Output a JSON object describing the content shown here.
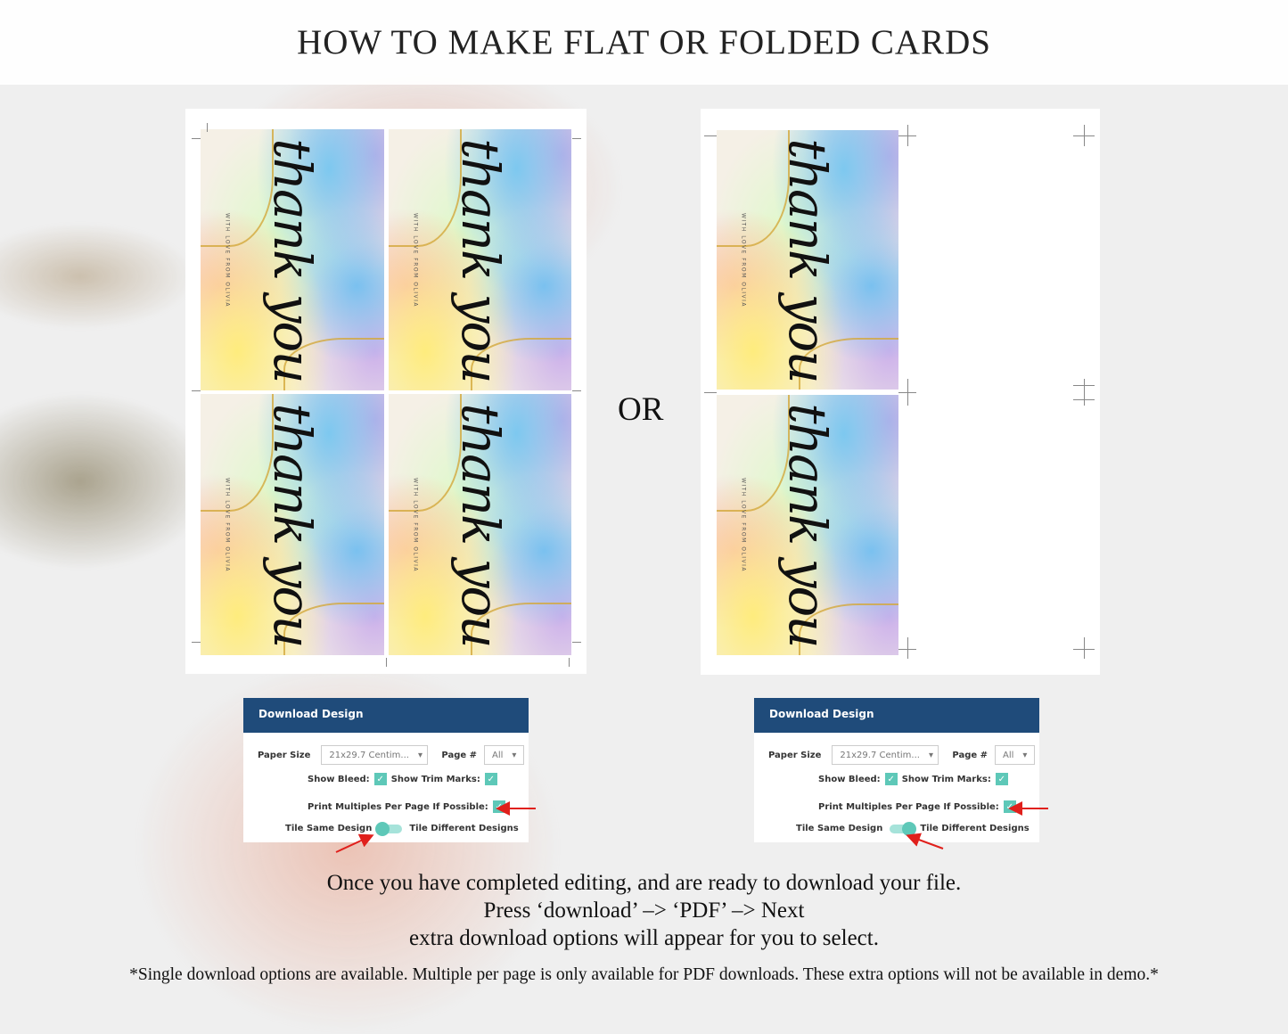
{
  "title": "HOW TO MAKE FLAT OR FOLDED CARDS",
  "separator": "OR",
  "card": {
    "main_text": "thank you",
    "sub_text": "WITH LOVE FROM OLIVIA"
  },
  "panels": [
    {
      "header": "Download Design",
      "paper_size_label": "Paper Size",
      "paper_size_value": "21x29.7 Centim...",
      "page_label": "Page #",
      "page_value": "All",
      "show_bleed_label": "Show Bleed:",
      "show_bleed": true,
      "show_trim_label": "Show Trim Marks:",
      "show_trim": true,
      "multiples_label": "Print Multiples Per Page If Possible:",
      "multiples": true,
      "tile_same_label": "Tile Same Design",
      "tile_diff_label": "Tile Different Designs",
      "tile_mode": "same"
    },
    {
      "header": "Download Design",
      "paper_size_label": "Paper Size",
      "paper_size_value": "21x29.7 Centim...",
      "page_label": "Page #",
      "page_value": "All",
      "show_bleed_label": "Show Bleed:",
      "show_bleed": true,
      "show_trim_label": "Show Trim Marks:",
      "show_trim": true,
      "multiples_label": "Print Multiples Per Page If Possible:",
      "multiples": true,
      "tile_same_label": "Tile Same Design",
      "tile_diff_label": "Tile Different Designs",
      "tile_mode": "different"
    }
  ],
  "instructions": [
    "Once you have completed editing, and are ready to download your file.",
    "Press ‘download’ –> ‘PDF’ –> Next",
    "extra download options will appear for you to select."
  ],
  "footnote": "*Single download options are available. Multiple per page is only available for PDF downloads. These extra options will not be available in demo.*",
  "colors": {
    "panel_header": "#1f4b7a",
    "checkbox": "#5ec8b8",
    "arrow": "#e0201c"
  }
}
